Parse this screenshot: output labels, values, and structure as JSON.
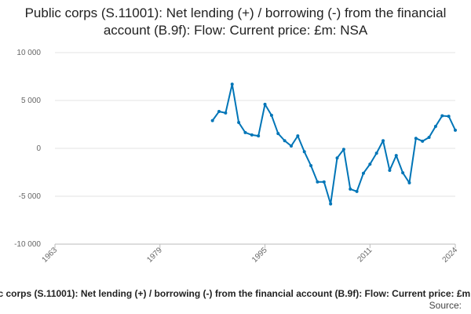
{
  "chart_data": {
    "type": "line",
    "title": "Public corps (S.11001): Net lending (+) / borrowing (-) from the financial account (B.9f): Flow: Current price: £m: NSA",
    "source": "Source:",
    "x": [
      1987,
      1988,
      1989,
      1990,
      1991,
      1992,
      1993,
      1994,
      1995,
      1996,
      1997,
      1998,
      1999,
      2000,
      2001,
      2002,
      2003,
      2004,
      2005,
      2006,
      2007,
      2008,
      2009,
      2010,
      2011,
      2012,
      2013,
      2014,
      2015,
      2016,
      2017,
      2018,
      2019,
      2020,
      2021,
      2022,
      2023,
      2024
    ],
    "series": [
      {
        "color": "#0075b7",
        "values": [
          2900,
          3850,
          3700,
          6700,
          2700,
          1650,
          1400,
          1300,
          4600,
          3450,
          1550,
          800,
          250,
          1300,
          -350,
          -1800,
          -3500,
          -3500,
          -5800,
          -1000,
          -100,
          -4250,
          -4500,
          -2600,
          -1650,
          -500,
          800,
          -2300,
          -750,
          -2550,
          -3600,
          1050,
          750,
          1150,
          2300,
          3400,
          3350,
          1900
        ]
      }
    ],
    "xlim": [
      1963,
      2024
    ],
    "xticks": [
      1963,
      1979,
      1995,
      2011,
      2024
    ],
    "ylim": [
      -10000,
      10000
    ],
    "yticks": [
      {
        "value": -10000,
        "label": "-10 000"
      },
      {
        "value": -5000,
        "label": "-5 000"
      },
      0,
      {
        "value": 5000,
        "label": "5 000"
      },
      {
        "value": 10000,
        "label": "10 000"
      }
    ],
    "grid": true
  }
}
